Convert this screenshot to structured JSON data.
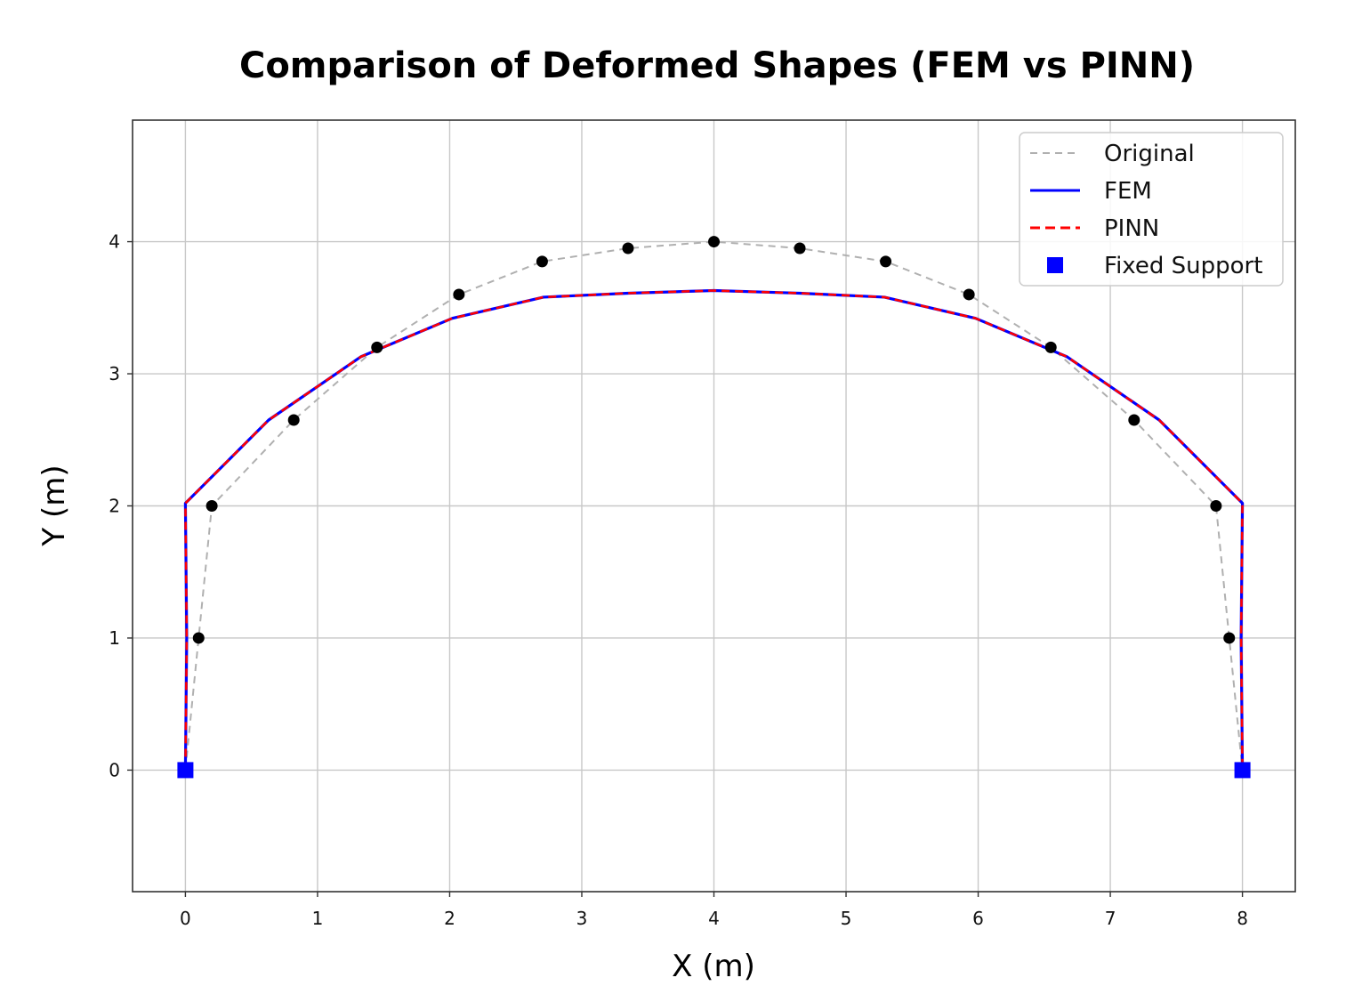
{
  "chart_data": {
    "type": "line",
    "title": "Comparison of Deformed Shapes (FEM vs PINN)",
    "xlabel": "X (m)",
    "ylabel": "Y (m)",
    "xlim": [
      -0.4,
      8.4
    ],
    "ylim": [
      -0.92,
      4.92
    ],
    "xticks": [
      0,
      1,
      2,
      3,
      4,
      5,
      6,
      7,
      8
    ],
    "yticks": [
      0,
      1,
      2,
      3,
      4
    ],
    "grid": true,
    "legend_position": "top-right",
    "series": [
      {
        "name": "Original",
        "style": "dashed",
        "color": "#b0b0b0",
        "marker_color": "#000000",
        "x": [
          0,
          0.1,
          0.2,
          0.82,
          1.45,
          2.07,
          2.7,
          3.35,
          4.0,
          4.65,
          5.3,
          5.93,
          6.55,
          7.18,
          7.8,
          7.9,
          8.0
        ],
        "y": [
          0,
          1.0,
          2.0,
          2.65,
          3.2,
          3.6,
          3.85,
          3.95,
          4.0,
          3.95,
          3.85,
          3.6,
          3.2,
          2.65,
          2.0,
          1.0,
          0
        ]
      },
      {
        "name": "FEM",
        "style": "solid",
        "color": "#0000ff",
        "x": [
          0,
          0.01,
          0.0,
          0.63,
          1.33,
          2.02,
          2.71,
          3.35,
          4.0,
          4.65,
          5.29,
          5.98,
          6.67,
          7.37,
          8.0,
          7.99,
          8.0
        ],
        "y": [
          0,
          1.0,
          2.02,
          2.65,
          3.13,
          3.42,
          3.58,
          3.61,
          3.63,
          3.61,
          3.58,
          3.42,
          3.13,
          2.65,
          2.02,
          1.0,
          0
        ]
      },
      {
        "name": "PINN",
        "style": "dashed",
        "color": "#ff0000",
        "x": [
          0,
          0.01,
          0.0,
          0.63,
          1.33,
          2.02,
          2.71,
          3.35,
          4.0,
          4.65,
          5.29,
          5.98,
          6.67,
          7.37,
          8.0,
          7.99,
          8.0
        ],
        "y": [
          0,
          1.0,
          2.02,
          2.65,
          3.13,
          3.42,
          3.58,
          3.61,
          3.63,
          3.61,
          3.58,
          3.42,
          3.13,
          2.65,
          2.02,
          1.0,
          0
        ]
      }
    ],
    "fixed_supports": {
      "name": "Fixed Support",
      "color": "#0000ff",
      "x": [
        0,
        8
      ],
      "y": [
        0,
        0
      ]
    }
  }
}
